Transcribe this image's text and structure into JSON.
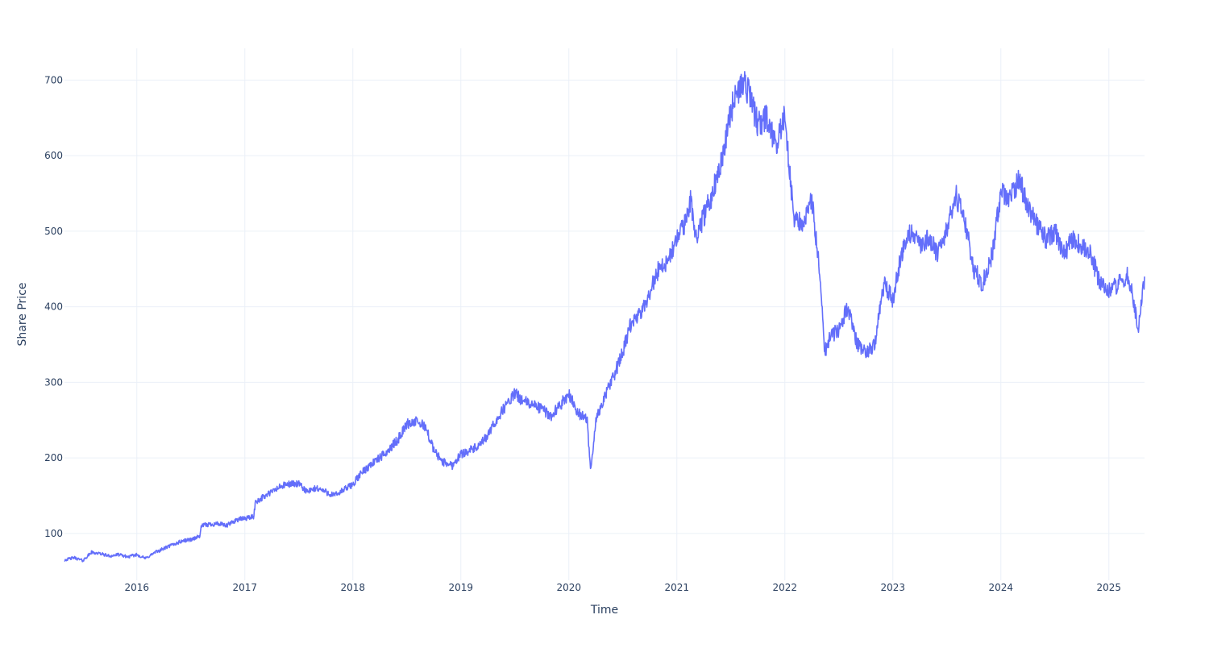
{
  "chart_data": {
    "type": "line",
    "title": "",
    "xlabel": "Time",
    "ylabel": "Share Price",
    "grid": true,
    "legend": "none",
    "xlim": [
      2015.33,
      2025.33
    ],
    "ylim": [
      38,
      742
    ],
    "x_ticks": [
      2016,
      2017,
      2018,
      2019,
      2020,
      2021,
      2022,
      2023,
      2024,
      2025
    ],
    "x_tick_labels": [
      "2016",
      "2017",
      "2018",
      "2019",
      "2020",
      "2021",
      "2022",
      "2023",
      "2024",
      "2025"
    ],
    "y_ticks": [
      100,
      200,
      300,
      400,
      500,
      600,
      700
    ],
    "y_tick_labels": [
      "100",
      "200",
      "300",
      "400",
      "500",
      "600",
      "700"
    ],
    "series": [
      {
        "color": "#636efa",
        "x": [
          2015.33,
          2015.42,
          2015.5,
          2015.58,
          2015.67,
          2015.75,
          2015.83,
          2015.92,
          2016.0,
          2016.08,
          2016.17,
          2016.25,
          2016.33,
          2016.42,
          2016.5,
          2016.58,
          2016.6,
          2016.67,
          2016.75,
          2016.83,
          2016.92,
          2017.0,
          2017.08,
          2017.1,
          2017.17,
          2017.25,
          2017.33,
          2017.42,
          2017.5,
          2017.58,
          2017.67,
          2017.75,
          2017.83,
          2017.92,
          2018.0,
          2018.08,
          2018.17,
          2018.25,
          2018.33,
          2018.42,
          2018.5,
          2018.58,
          2018.67,
          2018.75,
          2018.83,
          2018.92,
          2019.0,
          2019.08,
          2019.17,
          2019.25,
          2019.33,
          2019.42,
          2019.5,
          2019.58,
          2019.67,
          2019.75,
          2019.83,
          2019.92,
          2020.0,
          2020.08,
          2020.17,
          2020.2,
          2020.25,
          2020.33,
          2020.42,
          2020.5,
          2020.58,
          2020.67,
          2020.75,
          2020.83,
          2020.92,
          2021.0,
          2021.08,
          2021.13,
          2021.17,
          2021.25,
          2021.33,
          2021.42,
          2021.5,
          2021.58,
          2021.62,
          2021.67,
          2021.75,
          2021.83,
          2021.92,
          2022.0,
          2022.08,
          2022.17,
          2022.25,
          2022.33,
          2022.37,
          2022.42,
          2022.5,
          2022.58,
          2022.67,
          2022.75,
          2022.83,
          2022.92,
          2023.0,
          2023.08,
          2023.17,
          2023.25,
          2023.33,
          2023.42,
          2023.5,
          2023.58,
          2023.67,
          2023.75,
          2023.83,
          2023.92,
          2024.0,
          2024.08,
          2024.17,
          2024.25,
          2024.33,
          2024.42,
          2024.5,
          2024.58,
          2024.67,
          2024.75,
          2024.83,
          2024.92,
          2025.0,
          2025.08,
          2025.17,
          2025.22,
          2025.27,
          2025.33
        ],
        "y": [
          65,
          68,
          64,
          75,
          73,
          70,
          72,
          69,
          72,
          67,
          75,
          80,
          85,
          90,
          92,
          96,
          110,
          112,
          113,
          110,
          118,
          120,
          122,
          142,
          148,
          155,
          162,
          166,
          165,
          155,
          160,
          155,
          150,
          158,
          165,
          180,
          192,
          200,
          210,
          225,
          245,
          248,
          242,
          210,
          195,
          190,
          205,
          210,
          215,
          230,
          250,
          270,
          285,
          275,
          270,
          265,
          255,
          270,
          285,
          260,
          250,
          182,
          250,
          280,
          310,
          340,
          380,
          390,
          420,
          450,
          460,
          490,
          510,
          545,
          490,
          520,
          550,
          600,
          660,
          690,
          700,
          680,
          640,
          650,
          610,
          655,
          520,
          510,
          540,
          440,
          340,
          360,
          370,
          400,
          350,
          340,
          350,
          430,
          410,
          470,
          500,
          480,
          490,
          470,
          500,
          550,
          510,
          450,
          430,
          470,
          550,
          540,
          570,
          530,
          510,
          490,
          500,
          470,
          490,
          480,
          470,
          430,
          420,
          430,
          440,
          415,
          370,
          440
        ]
      }
    ]
  }
}
